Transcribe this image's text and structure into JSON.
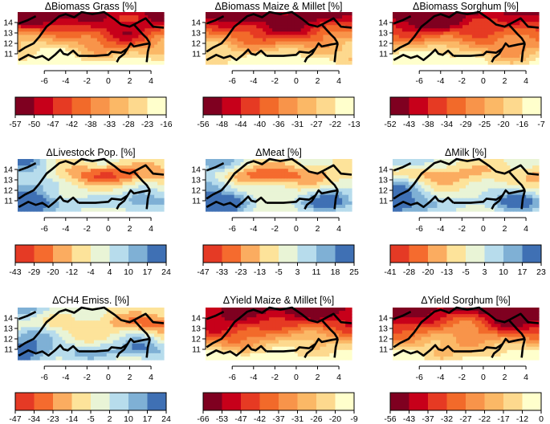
{
  "chart_data": [
    {
      "type": "heatmap",
      "title": "ΔBiomass Grass [%]",
      "legend_ticks": [
        "-57",
        "-50",
        "-47",
        "-42",
        "-38",
        "-33",
        "-28",
        "-23",
        "-16"
      ],
      "palette": "sequential"
    },
    {
      "type": "heatmap",
      "title": "ΔBiomass Maize & Millet [%]",
      "legend_ticks": [
        "-56",
        "-48",
        "-44",
        "-40",
        "-36",
        "-31",
        "-27",
        "-22",
        "-13"
      ],
      "palette": "sequential"
    },
    {
      "type": "heatmap",
      "title": "ΔBiomass Sorghum [%]",
      "legend_ticks": [
        "-52",
        "-43",
        "-38",
        "-34",
        "-29",
        "-25",
        "-20",
        "-16",
        "-7"
      ],
      "palette": "sequential"
    },
    {
      "type": "heatmap",
      "title": "ΔLivestock Pop. [%]",
      "legend_ticks": [
        "-43",
        "-29",
        "-20",
        "-12",
        "-4",
        "4",
        "10",
        "17",
        "24"
      ],
      "palette": "diverging"
    },
    {
      "type": "heatmap",
      "title": "ΔMeat [%]",
      "legend_ticks": [
        "-47",
        "-33",
        "-23",
        "-13",
        "-5",
        "3",
        "11",
        "18",
        "25"
      ],
      "palette": "diverging"
    },
    {
      "type": "heatmap",
      "title": "ΔMilk [%]",
      "legend_ticks": [
        "-41",
        "-28",
        "-20",
        "-13",
        "-5",
        "3",
        "10",
        "17",
        "23"
      ],
      "palette": "diverging"
    },
    {
      "type": "heatmap",
      "title": "ΔCH4 Emiss. [%]",
      "legend_ticks": [
        "-47",
        "-34",
        "-23",
        "-14",
        "-5",
        "2",
        "10",
        "17",
        "24"
      ],
      "palette": "diverging"
    },
    {
      "type": "heatmap",
      "title": "ΔYield Maize & Millet [%]",
      "legend_ticks": [
        "-66",
        "-53",
        "-47",
        "-42",
        "-37",
        "-31",
        "-26",
        "-20",
        "-9"
      ],
      "palette": "sequential"
    },
    {
      "type": "heatmap",
      "title": "ΔYield Sorghum [%]",
      "legend_ticks": [
        "-56",
        "-43",
        "-37",
        "-32",
        "-27",
        "-22",
        "-17",
        "-12",
        "0"
      ],
      "palette": "sequential"
    }
  ],
  "axes": {
    "x_ticks": [
      "-6",
      "-4",
      "-2",
      "0",
      "2",
      "4"
    ],
    "x_values": [
      -6,
      -4,
      -2,
      0,
      2,
      4
    ],
    "x_range": [
      -8.5,
      5.2
    ],
    "y_ticks": [
      "11",
      "12",
      "13",
      "14"
    ],
    "y_values": [
      11,
      12,
      13,
      14
    ],
    "y_range": [
      10,
      15
    ]
  },
  "colors": {
    "sequential": [
      "#7f0020",
      "#c7001a",
      "#e63a23",
      "#f26a2a",
      "#f8944a",
      "#fbb866",
      "#fdd98e",
      "#ffffcc"
    ],
    "diverging": [
      "#e53a25",
      "#f56b2e",
      "#fbac60",
      "#fde39a",
      "#e9f4d6",
      "#b7dcec",
      "#7fb0d5",
      "#3f70b4"
    ]
  }
}
